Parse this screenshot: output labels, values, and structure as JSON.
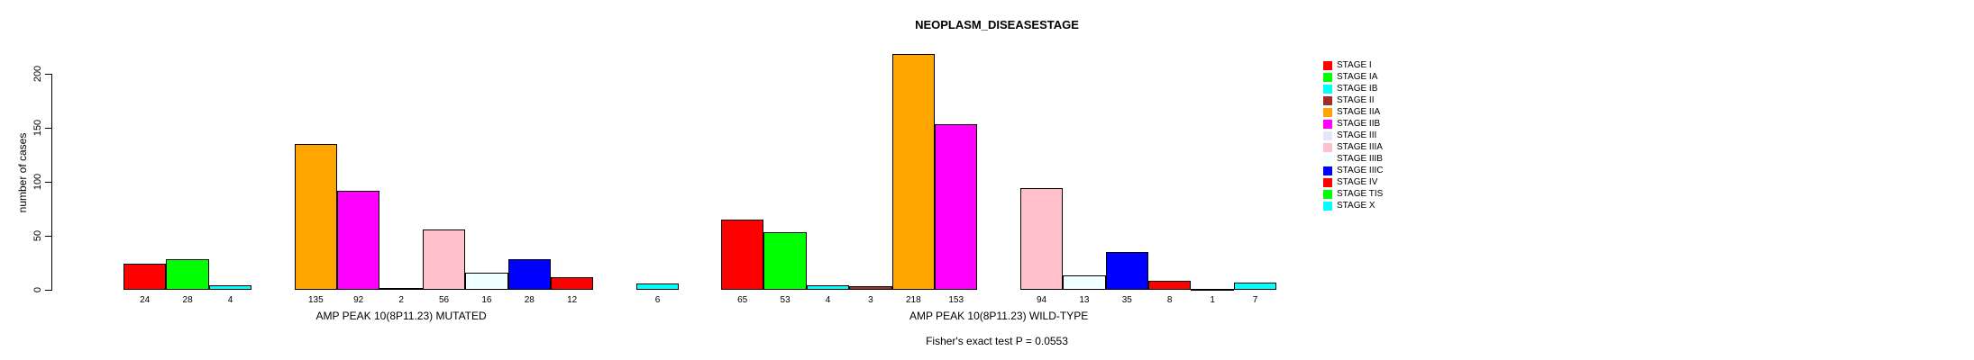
{
  "chart_data": {
    "type": "bar",
    "title": "NEOPLASM_DISEASESTAGE",
    "ylabel": "number of cases",
    "xlabel": "",
    "yticks": [
      0,
      50,
      100,
      150,
      200
    ],
    "ylim": [
      0,
      224
    ],
    "grid": false,
    "legend_position": "right",
    "groups": [
      "AMP PEAK 10(8P11.23) MUTATED",
      "AMP PEAK 10(8P11.23) WILD-TYPE"
    ],
    "series": [
      {
        "name": "STAGE I",
        "color": "#FF0000",
        "values": [
          24,
          65
        ]
      },
      {
        "name": "STAGE IA",
        "color": "#00FF00",
        "values": [
          28,
          53
        ]
      },
      {
        "name": "STAGE IB",
        "color": "#00FFFF",
        "values": [
          4,
          4
        ]
      },
      {
        "name": "STAGE II",
        "color": "#A52A2A",
        "values": [
          0,
          3
        ]
      },
      {
        "name": "STAGE IIA",
        "color": "#FFA500",
        "values": [
          135,
          218
        ]
      },
      {
        "name": "STAGE IIB",
        "color": "#FF00FF",
        "values": [
          92,
          153
        ]
      },
      {
        "name": "STAGE III",
        "color": "#E6E6FA",
        "values": [
          2,
          0
        ]
      },
      {
        "name": "STAGE IIIA",
        "color": "#FFC0CB",
        "values": [
          56,
          94
        ]
      },
      {
        "name": "STAGE IIIB",
        "color": "#F0FFFF",
        "values": [
          16,
          13
        ]
      },
      {
        "name": "STAGE IIIC",
        "color": "#0000FF",
        "values": [
          28,
          35
        ]
      },
      {
        "name": "STAGE IV",
        "color": "#FF0000",
        "values": [
          12,
          8
        ]
      },
      {
        "name": "STAGE TIS",
        "color": "#00FF00",
        "values": [
          0,
          1
        ]
      },
      {
        "name": "STAGE X",
        "color": "#00FFFF",
        "values": [
          6,
          7
        ]
      }
    ],
    "footer": "Fisher's exact test P = 0.0553"
  }
}
